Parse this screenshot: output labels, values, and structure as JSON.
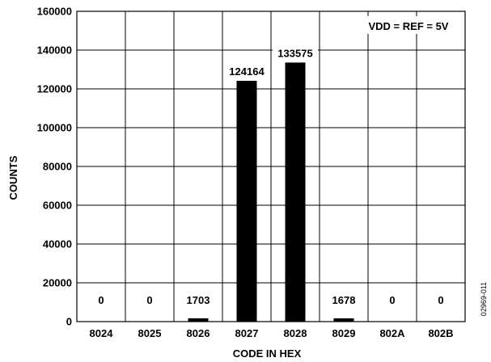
{
  "chart_data": {
    "type": "bar",
    "categories": [
      "8024",
      "8025",
      "8026",
      "8027",
      "8028",
      "8029",
      "802A",
      "802B"
    ],
    "values": [
      0,
      0,
      1703,
      124164,
      133575,
      1678,
      0,
      0
    ],
    "data_labels": [
      "0",
      "0",
      "1703",
      "124164",
      "133575",
      "1678",
      "0",
      "0"
    ],
    "xlabel": "CODE IN HEX",
    "ylabel": "COUNTS",
    "ylim": [
      0,
      160000
    ],
    "yticks": [
      0,
      20000,
      40000,
      60000,
      80000,
      100000,
      120000,
      140000,
      160000
    ],
    "ytick_labels": [
      "0",
      "20000",
      "40000",
      "60000",
      "80000",
      "100000",
      "120000",
      "140000",
      "160000"
    ],
    "grid": true,
    "annotation": "VDD = REF = 5V",
    "figure_id": "02969-011",
    "bar_color": "#000000"
  }
}
